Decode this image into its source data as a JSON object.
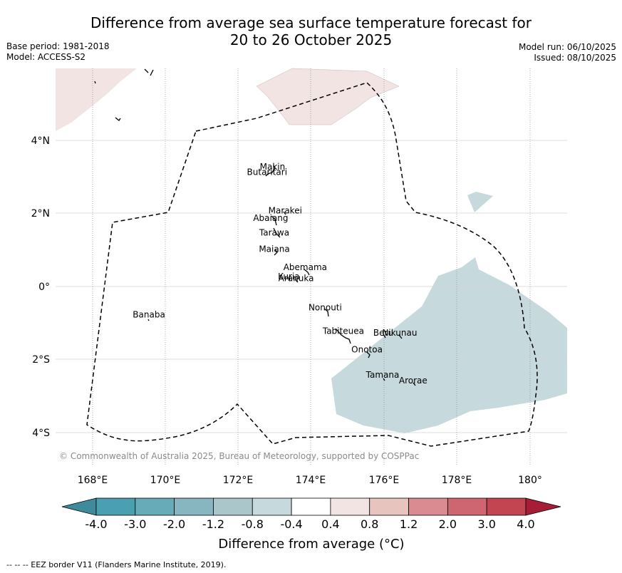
{
  "header": {
    "title_line1": "Difference from average sea surface temperature forecast for",
    "title_line2": "20 to 26 October 2025",
    "base_period": "Base period: 1981-2018",
    "model": "Model: ACCESS-S2",
    "model_run": "Model run: 06/10/2025",
    "issued": "Issued: 08/10/2025"
  },
  "map": {
    "lon_labels": [
      "168°E",
      "170°E",
      "172°E",
      "174°E",
      "176°E",
      "178°E",
      "180°"
    ],
    "lat_labels": [
      "4°N",
      "2°N",
      "0°",
      "2°S",
      "4°S"
    ],
    "islands": [
      {
        "name": "Makin",
        "lon": 172.95,
        "lat": 3.2
      },
      {
        "name": "Butaritari",
        "lon": 172.8,
        "lat": 3.05
      },
      {
        "name": "Marakei",
        "lon": 173.3,
        "lat": 2.0
      },
      {
        "name": "Abaiang",
        "lon": 172.9,
        "lat": 1.8
      },
      {
        "name": "Tarawa",
        "lon": 173.0,
        "lat": 1.4
      },
      {
        "name": "Maiana",
        "lon": 173.0,
        "lat": 0.95
      },
      {
        "name": "Abemama",
        "lon": 173.85,
        "lat": 0.45
      },
      {
        "name": "Kuria",
        "lon": 173.4,
        "lat": 0.2
      },
      {
        "name": "Aranuka",
        "lon": 173.6,
        "lat": 0.15
      },
      {
        "name": "Nonouti",
        "lon": 174.4,
        "lat": -0.65
      },
      {
        "name": "Banaba",
        "lon": 169.55,
        "lat": -0.85
      },
      {
        "name": "Tabiteuea",
        "lon": 174.9,
        "lat": -1.3
      },
      {
        "name": "Beru",
        "lon": 176.0,
        "lat": -1.35
      },
      {
        "name": "Nikunau",
        "lon": 176.45,
        "lat": -1.35
      },
      {
        "name": "Onotoa",
        "lon": 175.55,
        "lat": -1.8
      },
      {
        "name": "Tamana",
        "lon": 175.98,
        "lat": -2.5
      },
      {
        "name": "Arorae",
        "lon": 176.82,
        "lat": -2.65
      }
    ],
    "copyright": "© Commonwealth of Australia 2025, Bureau of Meteorology, supported by COSPPac"
  },
  "colorbar": {
    "labels": [
      "-4.0",
      "-3.0",
      "-2.0",
      "-1.2",
      "-0.8",
      "-0.4",
      "0.4",
      "0.8",
      "1.2",
      "2.0",
      "3.0",
      "4.0"
    ],
    "colors": [
      "#3f8b9b",
      "#4aa0b0",
      "#68abb8",
      "#88b6c0",
      "#aac6cb",
      "#c6d9dc",
      "#ffffff",
      "#f1e4e2",
      "#e8c4be",
      "#d98b91",
      "#cd6670",
      "#c34552",
      "#a71d38"
    ],
    "title": "Difference from average (°C)"
  },
  "footer": "--  --  -- EEZ border V11 (Flanders Marine Institute, 2019)."
}
